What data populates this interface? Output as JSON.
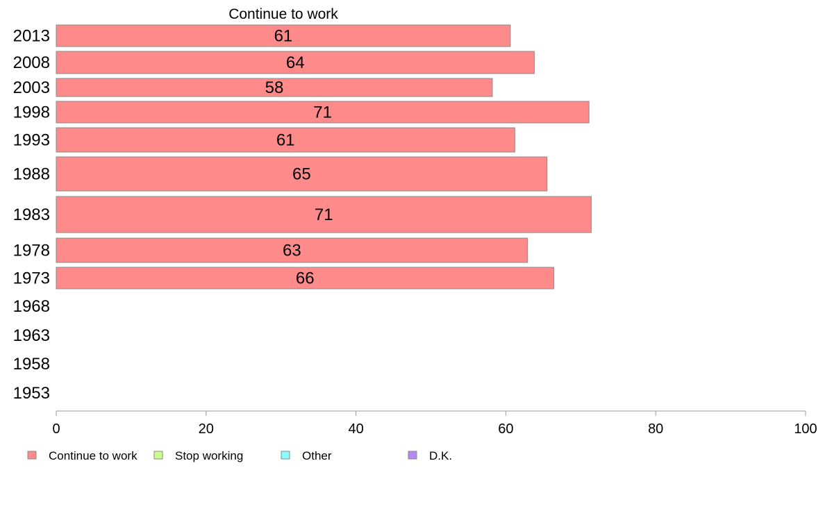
{
  "chart_data": {
    "type": "bar",
    "orientation": "horizontal",
    "title": "Continue to work",
    "categories": [
      "2013",
      "2008",
      "2003",
      "1998",
      "1993",
      "1988",
      "1983",
      "1978",
      "1973",
      "1968",
      "1963",
      "1958",
      "1953"
    ],
    "series": [
      {
        "name": "Continue to work",
        "color": "#ff8a8a",
        "values": [
          60.6,
          63.8,
          58.2,
          71.1,
          61.2,
          65.5,
          71.4,
          62.9,
          66.4,
          null,
          null,
          null,
          null
        ],
        "labels": [
          "61",
          "64",
          "58",
          "71",
          "61",
          "65",
          "71",
          "63",
          "66",
          "",
          "",
          "",
          ""
        ]
      }
    ],
    "xlim": [
      0,
      100
    ],
    "xticks": [
      "0",
      "20",
      "40",
      "60",
      "80",
      "100"
    ],
    "grid": false,
    "legend": {
      "placement": "bottom",
      "entries": [
        {
          "label": "Continue to work",
          "color": "#ff8a8a"
        },
        {
          "label": "Stop working",
          "color": "#c8ff8a"
        },
        {
          "label": "Other",
          "color": "#8afcff"
        },
        {
          "label": "D.K.",
          "color": "#b48af5"
        }
      ]
    }
  }
}
